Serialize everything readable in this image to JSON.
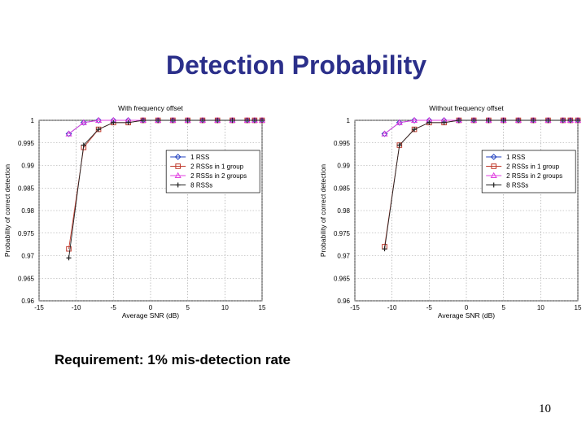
{
  "slide": {
    "title": "Detection Probability",
    "requirement": "Requirement: 1% mis-detection rate",
    "page_number": "10"
  },
  "chart_data": [
    {
      "type": "line",
      "title": "With frequency offset",
      "xlabel": "Average SNR (dB)",
      "ylabel": "Probability of correct detection",
      "xlim": [
        -15,
        15
      ],
      "ylim": [
        0.96,
        1.0
      ],
      "xticks": [
        -15,
        -10,
        -5,
        0,
        5,
        10,
        15
      ],
      "yticks": [
        0.96,
        0.965,
        0.97,
        0.975,
        0.98,
        0.985,
        0.99,
        0.995,
        1
      ],
      "ytick_labels": [
        "0.96",
        "0.965",
        "0.97",
        "0.975",
        "0.98",
        "0.985",
        "0.99",
        "0.995",
        "1"
      ],
      "grid": true,
      "legend_position": "right",
      "x": [
        -11,
        -9,
        -7,
        -5,
        -3,
        -1,
        1,
        3,
        5,
        7,
        9,
        11,
        13,
        14,
        15
      ],
      "series": [
        {
          "name": "1 RSS",
          "marker": "diamond",
          "color": "#1f3fbf",
          "values": [
            0.997,
            0.9995,
            1.0,
            1.0,
            1.0,
            1.0,
            1.0,
            1.0,
            1.0,
            1.0,
            1.0,
            1.0,
            1.0,
            1.0,
            1.0
          ]
        },
        {
          "name": "2 RSSs in 1 group",
          "marker": "square",
          "color": "#c0392b",
          "values": [
            0.9715,
            0.994,
            0.998,
            0.9995,
            0.9995,
            1.0,
            1.0,
            1.0,
            1.0,
            1.0,
            1.0,
            1.0,
            1.0,
            1.0,
            1.0
          ]
        },
        {
          "name": "2 RSSs in 2 groups",
          "marker": "triangle",
          "color": "#e040e0",
          "values": [
            0.997,
            0.9995,
            1.0,
            1.0,
            1.0,
            1.0,
            1.0,
            1.0,
            1.0,
            1.0,
            1.0,
            1.0,
            1.0,
            1.0,
            1.0
          ]
        },
        {
          "name": "8 RSSs",
          "marker": "plus",
          "color": "#222222",
          "values": [
            0.9695,
            0.9945,
            0.998,
            0.9995,
            0.9995,
            1.0,
            1.0,
            1.0,
            1.0,
            1.0,
            1.0,
            1.0,
            1.0,
            1.0,
            1.0
          ]
        }
      ]
    },
    {
      "type": "line",
      "title": "Without frequency offset",
      "xlabel": "Average SNR (dB)",
      "ylabel": "Probability of correct detection",
      "xlim": [
        -15,
        15
      ],
      "ylim": [
        0.96,
        1.0
      ],
      "xticks": [
        -15,
        -10,
        -5,
        0,
        5,
        10,
        15
      ],
      "yticks": [
        0.96,
        0.965,
        0.97,
        0.975,
        0.98,
        0.985,
        0.99,
        0.995,
        1
      ],
      "ytick_labels": [
        "0.96",
        "0.965",
        "0.97",
        "0.975",
        "0.98",
        "0.985",
        "0.99",
        "0.995",
        "1"
      ],
      "grid": true,
      "legend_position": "right",
      "x": [
        -11,
        -9,
        -7,
        -5,
        -3,
        -1,
        1,
        3,
        5,
        7,
        9,
        11,
        13,
        14,
        15
      ],
      "series": [
        {
          "name": "1 RSS",
          "marker": "diamond",
          "color": "#1f3fbf",
          "values": [
            0.997,
            0.9995,
            1.0,
            1.0,
            1.0,
            1.0,
            1.0,
            1.0,
            1.0,
            1.0,
            1.0,
            1.0,
            1.0,
            1.0,
            1.0
          ]
        },
        {
          "name": "2 RSSs in 1 group",
          "marker": "square",
          "color": "#c0392b",
          "values": [
            0.972,
            0.9945,
            0.998,
            0.9995,
            0.9995,
            1.0,
            1.0,
            1.0,
            1.0,
            1.0,
            1.0,
            1.0,
            1.0,
            1.0,
            1.0
          ]
        },
        {
          "name": "2 RSSs in 2 groups",
          "marker": "triangle",
          "color": "#e040e0",
          "values": [
            0.997,
            0.9995,
            1.0,
            1.0,
            1.0,
            1.0,
            1.0,
            1.0,
            1.0,
            1.0,
            1.0,
            1.0,
            1.0,
            1.0,
            1.0
          ]
        },
        {
          "name": "8 RSSs",
          "marker": "plus",
          "color": "#222222",
          "values": [
            0.9715,
            0.9945,
            0.998,
            0.9995,
            0.9995,
            1.0,
            1.0,
            1.0,
            1.0,
            1.0,
            1.0,
            1.0,
            1.0,
            1.0,
            1.0
          ]
        }
      ]
    }
  ]
}
